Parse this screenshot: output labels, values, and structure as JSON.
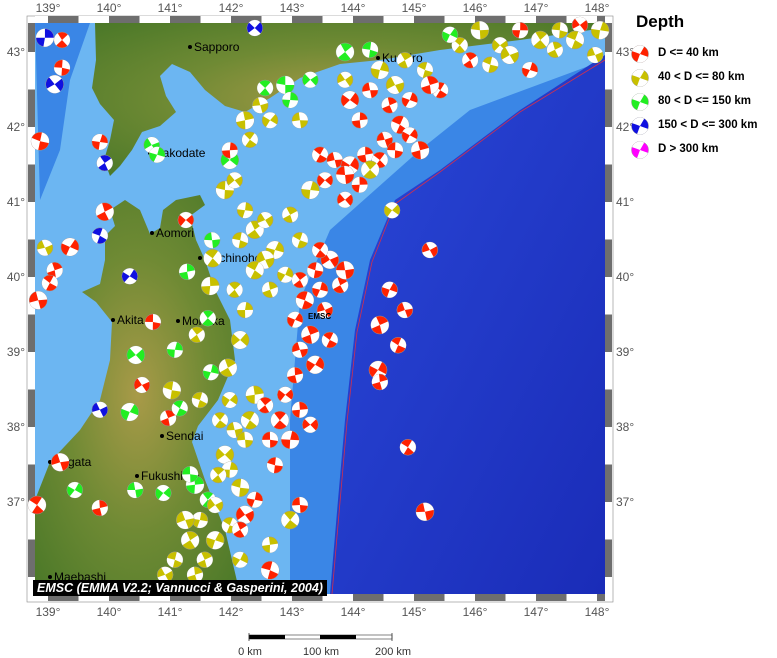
{
  "map": {
    "lon_range": [
      138.8,
      148.15
    ],
    "lat_range": [
      36.2,
      43.4
    ],
    "lon_ticks": [
      139,
      140,
      141,
      142,
      143,
      144,
      145,
      146,
      147,
      148
    ],
    "lat_ticks": [
      37,
      38,
      39,
      40,
      41,
      42,
      43
    ],
    "degree_suffix": "°",
    "event_label": "EMSC",
    "cities": [
      "Sapporo",
      "Kushiro",
      "Hakodate",
      "Aomori",
      "Hachinohe",
      "Akita",
      "Morioka",
      "Sendai",
      "Niigata",
      "Fukushima",
      "Maebashi"
    ],
    "colors": {
      "ocean_shelf": "#6cb6f2",
      "ocean_slope": "#3a86e6",
      "ocean_deep": "#1f36c4",
      "land": "#5a7d2c",
      "trench": "#d03050"
    }
  },
  "legend": {
    "title": "Depth",
    "items": [
      {
        "label": "D <= 40 km",
        "color": "#ff2200"
      },
      {
        "label": "40 < D <= 80 km",
        "color": "#c8c000"
      },
      {
        "label": "80 < D <= 150 km",
        "color": "#22ee22"
      },
      {
        "label": "150 < D <= 300 km",
        "color": "#1010e0"
      },
      {
        "label": "D > 300 km",
        "color": "#ff00ff"
      }
    ]
  },
  "attribution": "EMSC (EMMA V2.2; Vannucci & Gasperini, 2004)",
  "scale_bar": {
    "labels": [
      "0 km",
      "100 km",
      "200 km"
    ]
  },
  "events": [
    [
      138.95,
      43.19,
      4
    ],
    [
      139.23,
      43.16,
      1
    ],
    [
      139.23,
      42.79,
      1
    ],
    [
      139.11,
      42.57,
      4
    ],
    [
      139.85,
      41.8,
      1
    ],
    [
      139.93,
      41.52,
      4
    ],
    [
      138.87,
      41.81,
      1
    ],
    [
      140.7,
      41.76,
      3
    ],
    [
      140.79,
      41.63,
      3
    ],
    [
      139.93,
      40.87,
      1
    ],
    [
      139.85,
      40.55,
      4
    ],
    [
      138.95,
      40.39,
      2
    ],
    [
      139.36,
      40.4,
      1
    ],
    [
      139.11,
      40.09,
      1
    ],
    [
      139.03,
      39.92,
      1
    ],
    [
      138.84,
      39.69,
      1
    ],
    [
      140.34,
      40.01,
      4
    ],
    [
      141.28,
      40.07,
      3
    ],
    [
      141.7,
      40.25,
      2
    ],
    [
      141.69,
      40.49,
      3
    ],
    [
      141.26,
      40.76,
      1
    ],
    [
      141.66,
      39.88,
      2
    ],
    [
      141.62,
      39.45,
      3
    ],
    [
      140.72,
      39.4,
      1
    ],
    [
      140.44,
      38.96,
      3
    ],
    [
      141.08,
      39.03,
      3
    ],
    [
      141.44,
      39.23,
      2
    ],
    [
      141.03,
      38.49,
      2
    ],
    [
      140.54,
      38.56,
      1
    ],
    [
      141.67,
      38.73,
      3
    ],
    [
      141.95,
      38.79,
      2
    ],
    [
      141.49,
      38.36,
      2
    ],
    [
      139.85,
      38.23,
      4
    ],
    [
      140.34,
      38.2,
      3
    ],
    [
      140.97,
      38.12,
      1
    ],
    [
      141.16,
      38.25,
      3
    ],
    [
      139.2,
      37.53,
      1
    ],
    [
      139.44,
      37.16,
      3
    ],
    [
      139.85,
      36.92,
      1
    ],
    [
      138.82,
      36.96,
      1
    ],
    [
      140.43,
      37.16,
      3
    ],
    [
      140.89,
      37.12,
      3
    ],
    [
      141.41,
      37.23,
      3
    ],
    [
      141.62,
      37.03,
      3
    ],
    [
      141.33,
      37.37,
      3
    ],
    [
      141.9,
      37.63,
      2
    ],
    [
      141.98,
      37.43,
      2
    ],
    [
      141.79,
      37.36,
      2
    ],
    [
      142.15,
      37.19,
      2
    ],
    [
      141.74,
      36.96,
      2
    ],
    [
      141.49,
      36.76,
      2
    ],
    [
      141.33,
      36.49,
      2
    ],
    [
      141.08,
      36.23,
      2
    ],
    [
      140.92,
      36.03,
      2
    ],
    [
      141.74,
      36.49,
      2
    ],
    [
      141.57,
      36.23,
      2
    ],
    [
      141.98,
      36.69,
      2
    ],
    [
      141.25,
      36.76,
      2
    ],
    [
      142.15,
      36.23,
      2
    ],
    [
      141.41,
      36.03,
      2
    ],
    [
      142.31,
      38.09,
      2
    ],
    [
      142.06,
      37.96,
      2
    ],
    [
      141.98,
      38.36,
      2
    ],
    [
      142.39,
      38.43,
      2
    ],
    [
      141.82,
      38.09,
      2
    ],
    [
      142.23,
      37.83,
      2
    ],
    [
      142.15,
      39.16,
      2
    ],
    [
      142.23,
      39.56,
      2
    ],
    [
      142.06,
      39.83,
      2
    ],
    [
      141.9,
      41.16,
      2
    ],
    [
      142.06,
      41.29,
      2
    ],
    [
      142.23,
      40.89,
      2
    ],
    [
      142.39,
      40.63,
      2
    ],
    [
      142.15,
      40.49,
      2
    ],
    [
      142.56,
      40.76,
      2
    ],
    [
      142.72,
      40.36,
      2
    ],
    [
      142.97,
      40.83,
      2
    ],
    [
      143.13,
      40.49,
      2
    ],
    [
      142.56,
      40.23,
      2
    ],
    [
      142.89,
      40.03,
      2
    ],
    [
      142.64,
      39.83,
      2
    ],
    [
      142.39,
      40.09,
      2
    ],
    [
      142.48,
      42.29,
      2
    ],
    [
      142.64,
      42.09,
      2
    ],
    [
      142.23,
      42.09,
      2
    ],
    [
      142.31,
      41.83,
      2
    ],
    [
      143.13,
      42.09,
      2
    ],
    [
      141.98,
      41.56,
      3
    ],
    [
      141.98,
      41.69,
      1
    ],
    [
      142.56,
      42.52,
      3
    ],
    [
      142.89,
      42.56,
      3
    ],
    [
      143.3,
      42.63,
      3
    ],
    [
      142.97,
      42.36,
      3
    ],
    [
      143.87,
      43.0,
      3
    ],
    [
      144.28,
      43.03,
      3
    ],
    [
      143.87,
      42.63,
      2
    ],
    [
      144.44,
      42.76,
      2
    ],
    [
      144.85,
      42.89,
      2
    ],
    [
      145.18,
      42.76,
      2
    ],
    [
      144.69,
      42.56,
      2
    ],
    [
      144.93,
      42.36,
      1
    ],
    [
      144.6,
      42.29,
      1
    ],
    [
      144.77,
      42.03,
      1
    ],
    [
      144.52,
      41.83,
      1
    ],
    [
      144.93,
      41.89,
      1
    ],
    [
      145.1,
      41.69,
      1
    ],
    [
      145.43,
      42.49,
      1
    ],
    [
      144.28,
      42.49,
      1
    ],
    [
      143.95,
      42.36,
      1
    ],
    [
      144.11,
      42.09,
      1
    ],
    [
      145.75,
      43.09,
      2
    ],
    [
      146.08,
      43.29,
      2
    ],
    [
      146.41,
      43.09,
      2
    ],
    [
      146.74,
      43.29,
      1
    ],
    [
      147.07,
      43.16,
      2
    ],
    [
      147.39,
      43.29,
      2
    ],
    [
      147.72,
      43.36,
      1
    ],
    [
      148.05,
      43.29,
      2
    ],
    [
      145.92,
      42.89,
      1
    ],
    [
      146.25,
      42.83,
      2
    ],
    [
      146.57,
      42.96,
      2
    ],
    [
      146.9,
      42.76,
      1
    ],
    [
      147.31,
      43.03,
      2
    ],
    [
      147.64,
      43.16,
      2
    ],
    [
      147.97,
      42.96,
      2
    ],
    [
      145.59,
      43.23,
      3
    ],
    [
      145.26,
      42.56,
      1
    ],
    [
      143.46,
      41.63,
      1
    ],
    [
      143.7,
      41.56,
      1
    ],
    [
      143.95,
      41.49,
      1
    ],
    [
      144.2,
      41.63,
      1
    ],
    [
      144.44,
      41.56,
      1
    ],
    [
      143.87,
      41.36,
      1
    ],
    [
      143.54,
      41.29,
      1
    ],
    [
      144.11,
      41.23,
      1
    ],
    [
      144.28,
      41.43,
      2
    ],
    [
      144.69,
      41.69,
      1
    ],
    [
      143.87,
      41.03,
      1
    ],
    [
      143.3,
      41.16,
      2
    ],
    [
      143.13,
      39.96,
      1
    ],
    [
      143.38,
      40.09,
      1
    ],
    [
      143.62,
      40.23,
      1
    ],
    [
      143.46,
      39.83,
      1
    ],
    [
      143.79,
      39.89,
      1
    ],
    [
      143.21,
      39.69,
      1
    ],
    [
      143.54,
      39.56,
      1
    ],
    [
      143.05,
      39.43,
      1
    ],
    [
      143.3,
      39.23,
      1
    ],
    [
      143.62,
      39.16,
      1
    ],
    [
      143.13,
      39.03,
      1
    ],
    [
      143.38,
      38.83,
      1
    ],
    [
      143.05,
      38.69,
      1
    ],
    [
      143.46,
      40.36,
      1
    ],
    [
      143.87,
      40.09,
      1
    ],
    [
      142.89,
      38.43,
      1
    ],
    [
      143.13,
      38.23,
      1
    ],
    [
      142.8,
      38.09,
      1
    ],
    [
      142.64,
      37.83,
      1
    ],
    [
      143.3,
      38.03,
      1
    ],
    [
      142.97,
      37.83,
      1
    ],
    [
      142.56,
      38.29,
      1
    ],
    [
      142.72,
      37.49,
      1
    ],
    [
      142.23,
      36.83,
      1
    ],
    [
      142.39,
      37.03,
      1
    ],
    [
      142.15,
      36.63,
      1
    ],
    [
      142.64,
      36.09,
      1
    ],
    [
      145.26,
      40.36,
      1
    ],
    [
      144.6,
      39.83,
      1
    ],
    [
      144.44,
      39.36,
      1
    ],
    [
      144.74,
      39.09,
      1
    ],
    [
      144.85,
      39.56,
      1
    ],
    [
      144.41,
      38.76,
      1
    ],
    [
      144.44,
      38.6,
      1
    ],
    [
      144.9,
      37.73,
      1
    ],
    [
      145.18,
      36.87,
      1
    ],
    [
      144.64,
      40.89,
      2
    ],
    [
      142.64,
      36.43,
      2
    ],
    [
      142.97,
      36.76,
      2
    ],
    [
      143.13,
      36.96,
      1
    ],
    [
      142.39,
      43.32,
      4
    ]
  ]
}
